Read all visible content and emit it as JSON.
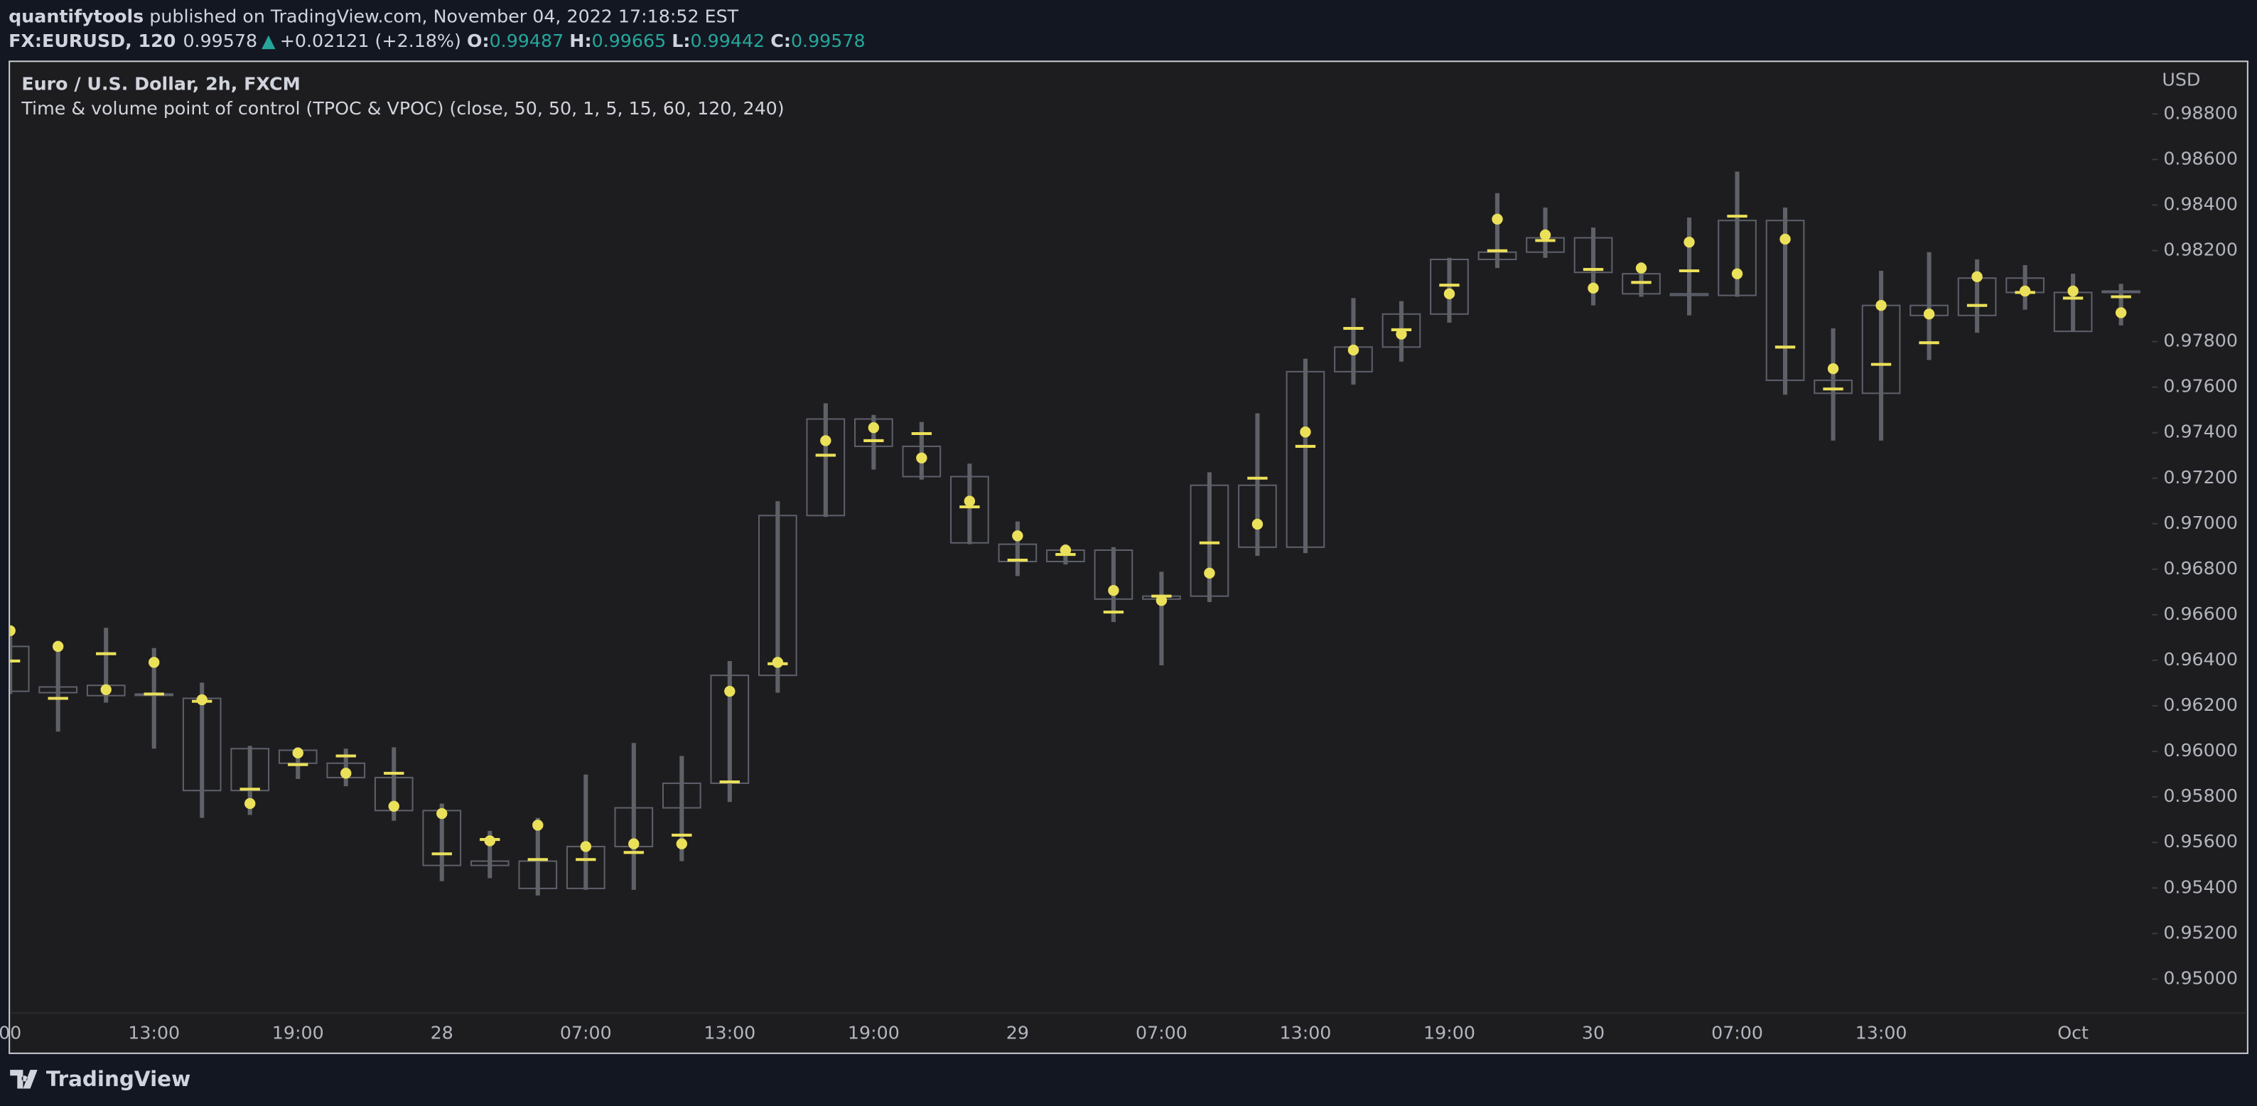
{
  "header": {
    "author": "quantifytools",
    "published": "published on TradingView.com, November 04, 2022 17:18:52 EST"
  },
  "quote": {
    "symbol": "FX:EURUSD, 120",
    "last": "0.99578",
    "arrow": "▲",
    "change": "+0.02121 (+2.18%)",
    "open_label": "O:",
    "open": "0.99487",
    "high_label": "H:",
    "high": "0.99665",
    "low_label": "L:",
    "low": "0.99442",
    "close_label": "C:",
    "close": "0.99578"
  },
  "footer": {
    "brand": "TradingView"
  },
  "chart_data": {
    "type": "candlestick",
    "title": "Euro / U.S. Dollar, 2h, FXCM",
    "subtitle": "Time & volume point of control (TPOC & VPOC) (close, 50, 50, 1, 5, 15, 60, 120, 240)",
    "y_axis_label": "USD",
    "categories": [
      "00",
      null,
      null,
      "13:00",
      null,
      null,
      "19:00",
      null,
      null,
      "28",
      null,
      null,
      "07:00",
      null,
      null,
      "13:00",
      null,
      null,
      "19:00",
      null,
      null,
      "29",
      null,
      null,
      "07:00",
      null,
      null,
      "13:00",
      null,
      null,
      "19:00",
      null,
      null,
      "30",
      null,
      null,
      "07:00",
      null,
      null,
      "13:00",
      null,
      null,
      null,
      "Oct",
      null
    ],
    "open": [
      0.96461,
      0.96258,
      0.9629,
      0.96246,
      0.96233,
      0.95828,
      0.96005,
      0.95948,
      0.95885,
      0.9574,
      0.95499,
      0.95518,
      0.95398,
      0.95582,
      0.95752,
      0.9586,
      0.96334,
      0.97036,
      0.9746,
      0.9734,
      0.97207,
      0.9691,
      0.96834,
      0.96884,
      0.96669,
      0.96682,
      0.97169,
      0.96897,
      0.97668,
      0.97776,
      0.97921,
      0.98161,
      0.98193,
      0.98256,
      0.98098,
      0.9801,
      0.98003,
      0.98332,
      0.9763,
      0.97573,
      0.97959,
      0.97915,
      0.98079,
      0.98016,
      0.98016
    ],
    "high": [
      0.96536,
      0.96486,
      0.96543,
      0.96454,
      0.96302,
      0.96024,
      0.96018,
      0.96012,
      0.96018,
      0.95771,
      0.95651,
      0.95708,
      0.95898,
      0.96037,
      0.9598,
      0.96397,
      0.97099,
      0.97529,
      0.97478,
      0.97447,
      0.97264,
      0.9701,
      0.9691,
      0.96897,
      0.96789,
      0.97226,
      0.97485,
      0.97725,
      0.97991,
      0.97978,
      0.98168,
      0.98452,
      0.98389,
      0.98301,
      0.98149,
      0.98345,
      0.98547,
      0.98389,
      0.97858,
      0.98111,
      0.98193,
      0.98161,
      0.98136,
      0.98098,
      0.98054
    ],
    "low": [
      0.96252,
      0.96087,
      0.96214,
      0.96012,
      0.95708,
      0.95721,
      0.95879,
      0.95847,
      0.95695,
      0.9543,
      0.95443,
      0.95367,
      0.95392,
      0.95392,
      0.95518,
      0.95778,
      0.96258,
      0.9703,
      0.97238,
      0.97194,
      0.9691,
      0.9677,
      0.96821,
      0.96568,
      0.96378,
      0.96656,
      0.96859,
      0.96871,
      0.97611,
      0.97712,
      0.97883,
      0.98123,
      0.98168,
      0.97959,
      0.97997,
      0.97915,
      0.97997,
      0.97567,
      0.97365,
      0.97365,
      0.97719,
      0.97839,
      0.9794,
      0.97845,
      0.97871
    ],
    "close": [
      0.96264,
      0.96283,
      0.96245,
      0.96252,
      0.95828,
      0.96012,
      0.95948,
      0.95885,
      0.9574,
      0.95499,
      0.95518,
      0.95398,
      0.95582,
      0.95752,
      0.9586,
      0.96334,
      0.97036,
      0.9746,
      0.9734,
      0.97207,
      0.96916,
      0.96834,
      0.96884,
      0.96669,
      0.96682,
      0.97169,
      0.96897,
      0.97668,
      0.97776,
      0.97921,
      0.98161,
      0.98193,
      0.98256,
      0.98104,
      0.9801,
      0.98003,
      0.98332,
      0.9763,
      0.97573,
      0.97959,
      0.97915,
      0.98079,
      0.98016,
      0.97845,
      0.98022
    ],
    "tpoc": [
      0.9653,
      0.96461,
      0.96271,
      0.96391,
      0.96227,
      0.95771,
      0.95993,
      0.95904,
      0.95759,
      0.95727,
      0.95607,
      0.95676,
      0.95582,
      0.95594,
      0.95594,
      0.96264,
      0.96391,
      0.97365,
      0.97422,
      0.97289,
      0.97099,
      0.96947,
      0.96884,
      0.96707,
      0.96663,
      0.96783,
      0.96998,
      0.97403,
      0.97763,
      0.97833,
      0.9801,
      0.98338,
      0.98269,
      0.98035,
      0.98123,
      0.98237,
      0.98098,
      0.9825,
      0.97681,
      0.97959,
      0.97921,
      0.98085,
      0.98022,
      0.98022,
      0.97927
    ],
    "vpoc": [
      0.96397,
      0.96233,
      0.96429,
      0.96252,
      0.9622,
      0.95834,
      0.95942,
      0.9598,
      0.95904,
      0.9555,
      0.95613,
      0.95525,
      0.95525,
      0.95556,
      0.95632,
      0.95866,
      0.96385,
      0.97301,
      0.97365,
      0.97396,
      0.97074,
      0.9684,
      0.96865,
      0.96612,
      0.96682,
      0.96916,
      0.972,
      0.9734,
      0.97858,
      0.97852,
      0.98048,
      0.98199,
      0.98244,
      0.98117,
      0.9806,
      0.98111,
      0.98351,
      0.97776,
      0.97592,
      0.977,
      0.97795,
      0.97959,
      0.98016,
      0.97991,
      0.97997
    ],
    "body_color": "#5d606b",
    "wick_color": "#5f6169",
    "tpoc_color": "#ebe05a",
    "vpoc_color": "#ebe05a",
    "ylim": [
      0.94854,
      0.99028
    ],
    "yticks": [
      {
        "value": 0.95,
        "label": "0.95000"
      },
      {
        "value": 0.952,
        "label": "0.95200"
      },
      {
        "value": 0.954,
        "label": "0.95400"
      },
      {
        "value": 0.956,
        "label": "0.95600"
      },
      {
        "value": 0.958,
        "label": "0.95800"
      },
      {
        "value": 0.96,
        "label": "0.96000"
      },
      {
        "value": 0.962,
        "label": "0.96200"
      },
      {
        "value": 0.964,
        "label": "0.96400"
      },
      {
        "value": 0.966,
        "label": "0.96600"
      },
      {
        "value": 0.968,
        "label": "0.96800"
      },
      {
        "value": 0.97,
        "label": "0.97000"
      },
      {
        "value": 0.972,
        "label": "0.97200"
      },
      {
        "value": 0.974,
        "label": "0.97400"
      },
      {
        "value": 0.976,
        "label": "0.97600"
      },
      {
        "value": 0.978,
        "label": "0.97800"
      },
      {
        "value": 0.982,
        "label": "0.98200"
      },
      {
        "value": 0.984,
        "label": "0.98400"
      },
      {
        "value": 0.986,
        "label": "0.98600"
      },
      {
        "value": 0.988,
        "label": "0.98800"
      }
    ]
  }
}
